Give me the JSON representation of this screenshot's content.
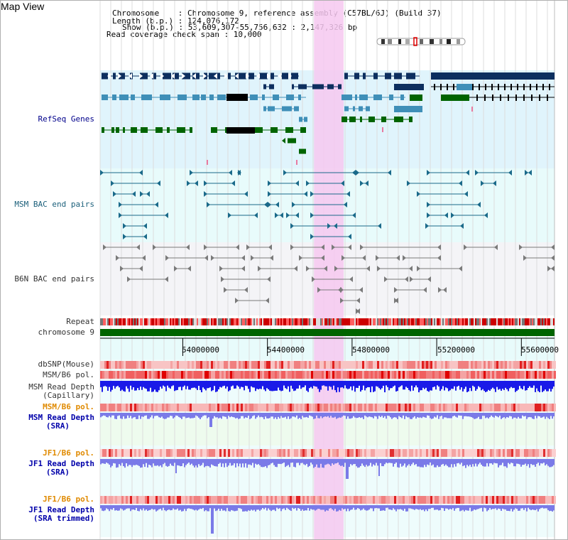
{
  "view": {
    "title": "Map View"
  },
  "info": {
    "chromosome_line": "Chromosome    : Chromosome 9, reference assembly (C57BL/6J) (Build 37)",
    "length_line": "Length (b.p.) : 124,076,172",
    "show_line": "Show (b.p.) : 53,609,307-55,756,632 : 2,147,326 bp",
    "span_line": "Read coverage check span : 10,000"
  },
  "region": {
    "start": 53609307,
    "end": 55756632,
    "highlight_start": 54620000,
    "highlight_end": 54760000
  },
  "tracks": {
    "refseq": "RefSeq Genes",
    "msm_bac": "MSM BAC end pairs",
    "b6n_bac": "B6N BAC end pairs",
    "repeat": "Repeat",
    "chromosome": "chromosome 9",
    "dbsnp": "dbSNP(Mouse)",
    "msm_b6_pol": "MSM/B6 pol.",
    "msm_depth_cap_1": "MSM Read Depth",
    "msm_depth_cap_2": "(Capillary)",
    "msm_b6_pol2": "MSM/B6 pol.",
    "msm_depth_sra_1": "MSM Read Depth",
    "msm_depth_sra_2": "(SRA)",
    "jf1_b6_pol": "JF1/B6 pol.",
    "jf1_depth_1": "JF1 Read Depth",
    "jf1_depth_2": "(SRA)",
    "jf1_b6_pol2": "JF1/B6 pol.",
    "jf1_trim_1": "JF1 Read Depth",
    "jf1_trim_2": "(SRA trimmed)"
  },
  "axis": {
    "ticks": [
      "54000000",
      "54400000",
      "54800000",
      "55200000",
      "55600000"
    ],
    "tick_values": [
      54000000,
      54400000,
      54800000,
      55200000,
      55600000
    ]
  },
  "colors": {
    "refseq_navy": "#0d2f5f",
    "refseq_blue": "#3f8fb8",
    "refseq_green": "#006400",
    "bac_teal": "#1a6a8a",
    "bac_grey": "#7a7a7a",
    "chromosome": "#006400",
    "highlight": "#f6c8f0",
    "depth_blue": "#1a1ae8",
    "depth_light": "#7a7ae8"
  }
}
